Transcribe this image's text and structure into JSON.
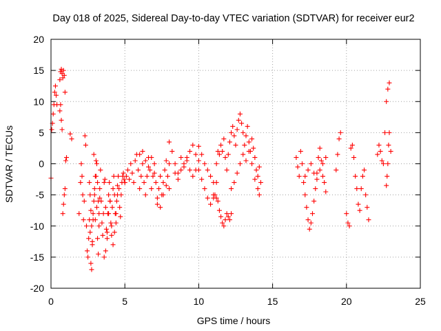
{
  "chart_data": {
    "type": "scatter",
    "title": "Day 018 of 2025, Sidereal Day-to-day VTEC variation (SDTVAR) for receiver eur2",
    "xlabel": "GPS time / hours",
    "ylabel": "SDTVAR / TECUs",
    "xlim": [
      0,
      25
    ],
    "ylim": [
      -20,
      20
    ],
    "xticks": [
      0,
      5,
      10,
      15,
      20,
      25
    ],
    "yticks": [
      -20,
      -15,
      -10,
      -5,
      0,
      5,
      10,
      15,
      20
    ],
    "xtick_labels": [
      "0",
      "5",
      "10",
      "15",
      "20",
      "25"
    ],
    "ytick_labels": [
      "-20",
      "-15",
      "-10",
      "-5",
      "0",
      "5",
      "10",
      "15",
      "20"
    ],
    "grid": true,
    "marker": "+",
    "color": "#ff0000",
    "series": [
      {
        "name": "eur2",
        "segments": [
          {
            "x": [
              0.0,
              0.05,
              0.1,
              0.15,
              0.2,
              0.25,
              0.3,
              0.35,
              0.4
            ],
            "y": [
              -2.3,
              5.5,
              6.5,
              8.0,
              9.5,
              11.5,
              12.5,
              11.0,
              9.5
            ]
          },
          {
            "x": [
              0.6,
              0.65,
              0.7,
              0.75,
              0.8,
              0.85,
              0.9,
              0.95
            ],
            "y": [
              13.5,
              14.8,
              15.2,
              14.5,
              13.8,
              15.0,
              14.2,
              11.5
            ]
          },
          {
            "x": [
              0.6,
              0.65,
              0.7,
              0.75,
              0.8,
              0.85,
              0.9,
              0.95,
              1.0,
              1.05
            ],
            "y": [
              8.5,
              9.5,
              7.0,
              5.5,
              -8.0,
              -6.5,
              -5.0,
              -4.0,
              0.5,
              1.0
            ]
          },
          {
            "x": [
              1.3,
              1.4
            ],
            "y": [
              4.8,
              4.0
            ]
          },
          {
            "x": [
              1.9,
              2.0,
              2.05,
              2.1,
              2.15,
              2.2,
              2.25,
              2.3,
              2.35,
              2.4,
              2.45,
              2.5,
              2.55,
              2.6,
              2.65,
              2.7,
              2.75,
              2.8,
              2.85,
              2.9,
              2.95,
              3.0,
              3.05,
              3.1,
              3.15,
              3.2,
              3.25,
              3.3,
              3.35,
              3.4,
              3.45,
              3.5,
              3.55,
              3.6,
              3.65,
              3.7,
              3.75,
              3.8,
              3.85,
              3.9,
              3.95,
              4.0,
              4.05,
              4.1,
              4.15,
              4.2,
              4.25,
              4.3,
              4.35,
              4.4,
              4.45,
              4.5,
              4.55,
              4.6,
              4.65,
              4.7,
              4.75,
              4.8,
              4.85,
              4.9,
              4.95,
              5.0
            ],
            "y": [
              -8.0,
              -3.0,
              0.0,
              -2.0,
              -5.0,
              -9.0,
              -6.0,
              4.5,
              3.0,
              -10.0,
              -14.0,
              -15.0,
              -12.0,
              -9.0,
              -11.0,
              -16.0,
              -17.0,
              -13.0,
              -8.0,
              1.5,
              -5.0,
              -9.0,
              -2.0,
              -7.0,
              -12.0,
              -14.5,
              -10.0,
              -4.0,
              -1.0,
              -6.0,
              -9.5,
              -11.5,
              -8.0,
              -3.0,
              -2.5,
              -7.0,
              -10.5,
              -12.0,
              -8.0,
              -5.0,
              -3.0,
              -6.0,
              -9.5,
              -11.5,
              -7.0,
              -4.0,
              -2.0,
              -5.0,
              -8.0,
              -9.5,
              -6.0,
              -3.5,
              -2.0,
              -4.0,
              -7.0,
              -8.5,
              -5.0,
              -3.0,
              -2.0,
              -1.5,
              -2.5,
              -3.0
            ]
          },
          {
            "x": [
              2.6,
              2.65,
              2.7,
              2.75,
              2.8,
              2.85,
              2.9,
              2.95,
              3.0,
              3.05,
              3.1,
              3.15,
              3.2,
              3.25,
              3.3
            ],
            "y": [
              -3.0,
              -5.0,
              -7.5,
              -10.0,
              -12.5,
              -9.0,
              -6.0,
              -4.0,
              -2.0,
              0.5,
              0.0,
              -3.0,
              -6.0,
              -8.0,
              -5.5
            ]
          },
          {
            "x": [
              3.6,
              3.7,
              3.8,
              3.9,
              4.0,
              4.1,
              4.2,
              4.3,
              4.4,
              4.5
            ],
            "y": [
              -15.0,
              -14.0,
              -11.0,
              -8.0,
              -6.0,
              -10.0,
              -13.0,
              -11.0,
              -8.0,
              -5.0
            ]
          },
          {
            "x": [
              5.0,
              5.1,
              5.2,
              5.3,
              5.4,
              5.5,
              5.6,
              5.7,
              5.8,
              5.9,
              6.0,
              6.1,
              6.2,
              6.3,
              6.4,
              6.5,
              6.6,
              6.7,
              6.8,
              6.9,
              7.0,
              7.1,
              7.2,
              7.3,
              7.4,
              7.5,
              7.6,
              7.7,
              7.8,
              7.9,
              8.0
            ],
            "y": [
              -3.0,
              -2.0,
              -1.0,
              -2.5,
              0.0,
              -1.5,
              -3.0,
              0.5,
              1.5,
              -1.0,
              -4.0,
              -2.0,
              0.0,
              -3.0,
              -5.0,
              -2.0,
              1.0,
              -1.0,
              -4.0,
              -2.0,
              0.0,
              -3.0,
              -6.5,
              -4.0,
              -2.0,
              -5.0,
              -3.0,
              -1.0,
              0.5,
              -2.0,
              0.0
            ]
          },
          {
            "x": [
              6.0,
              6.2,
              6.4,
              6.6,
              6.8,
              7.0,
              7.2,
              7.4,
              7.6,
              7.8,
              8.0
            ],
            "y": [
              1.5,
              2.0,
              0.5,
              -0.5,
              1.0,
              -1.5,
              -5.5,
              -7.0,
              -5.0,
              -3.5,
              -4.0
            ]
          },
          {
            "x": [
              8.0,
              8.2,
              8.4,
              8.6,
              8.8,
              9.0,
              9.2,
              9.4,
              9.6,
              9.8,
              10.0,
              10.2,
              10.4,
              10.6,
              10.8,
              11.0
            ],
            "y": [
              3.5,
              2.0,
              0.0,
              -1.5,
              1.0,
              -0.5,
              0.5,
              2.0,
              3.0,
              1.5,
              2.8,
              1.5,
              0.0,
              -1.0,
              -2.0,
              -3.0
            ]
          },
          {
            "x": [
              8.4,
              8.6,
              8.8,
              9.0,
              9.2,
              9.4,
              9.6,
              9.8,
              10.0
            ],
            "y": [
              -1.5,
              -2.5,
              -1.0,
              0.0,
              1.0,
              -1.0,
              -2.0,
              -1.0,
              0.5
            ]
          },
          {
            "x": [
              10.0,
              10.2,
              10.4,
              10.6,
              10.8,
              11.0,
              11.2
            ],
            "y": [
              -1.0,
              -2.5,
              -4.0,
              -5.5,
              -6.5,
              -5.0,
              -3.0
            ]
          },
          {
            "x": [
              11.0,
              11.1,
              11.2,
              11.3,
              11.4,
              11.5,
              11.6,
              11.7,
              11.8,
              11.9,
              12.0,
              12.1,
              12.2
            ],
            "y": [
              -5.5,
              -5.0,
              -5.5,
              -6.0,
              -7.5,
              -8.5,
              -9.5,
              -10.0,
              -9.0,
              -8.0,
              -8.5,
              -9.0,
              -8.0
            ]
          },
          {
            "x": [
              11.2,
              11.3,
              11.4,
              11.5,
              11.6,
              11.7,
              11.8,
              11.9,
              12.0,
              12.1,
              12.2,
              12.3,
              12.4,
              12.5,
              12.6,
              12.7,
              12.8,
              12.9,
              13.0,
              13.1,
              13.2,
              13.3,
              13.4,
              13.5,
              13.6,
              13.7,
              13.8,
              13.9,
              14.0,
              14.1,
              14.2
            ],
            "y": [
              0.0,
              2.0,
              1.5,
              3.0,
              2.0,
              4.0,
              1.0,
              -1.0,
              1.5,
              3.5,
              5.0,
              6.0,
              4.5,
              3.0,
              5.5,
              7.0,
              8.0,
              6.5,
              5.0,
              3.0,
              4.5,
              6.0,
              3.5,
              2.0,
              4.0,
              2.5,
              1.0,
              -1.0,
              -2.0,
              -0.5,
              -3.0
            ]
          },
          {
            "x": [
              12.2,
              12.4,
              12.6,
              12.8,
              13.0,
              13.2,
              13.4,
              13.6,
              13.8,
              14.0,
              14.1
            ],
            "y": [
              -4.0,
              -3.0,
              -1.5,
              0.0,
              1.5,
              0.5,
              2.0,
              0.0,
              -2.5,
              -4.0,
              -5.0
            ]
          },
          {
            "x": [
              16.6,
              16.7,
              16.8,
              16.9,
              17.0,
              17.1,
              17.2,
              17.3,
              17.4,
              17.5,
              17.6,
              17.7,
              17.8,
              17.9,
              18.0,
              18.1,
              18.2,
              18.3,
              18.4,
              18.5,
              18.6
            ],
            "y": [
              1.0,
              -0.5,
              -2.0,
              2.0,
              0.0,
              -3.0,
              -5.0,
              -7.0,
              -9.0,
              -10.5,
              -9.5,
              -8.0,
              -6.0,
              -4.0,
              -1.5,
              1.0,
              2.5,
              0.5,
              -2.0,
              -3.0,
              -4.5
            ]
          },
          {
            "x": [
              17.2,
              17.4,
              17.6,
              17.8,
              18.0,
              18.2,
              18.4,
              18.6
            ],
            "y": [
              -2.0,
              -1.0,
              0.0,
              -1.5,
              -2.5,
              -1.0,
              0.0,
              1.0
            ]
          },
          {
            "x": [
              19.3,
              19.4,
              19.5,
              19.6
            ],
            "y": [
              -1.0,
              1.5,
              4.0,
              5.0
            ]
          },
          {
            "x": [
              20.0,
              20.1,
              20.2,
              20.3,
              20.4,
              20.5,
              20.6,
              20.7,
              20.8,
              20.9,
              21.0,
              21.1,
              21.2,
              21.3,
              21.4,
              21.5
            ],
            "y": [
              -8.0,
              -9.5,
              -10.0,
              2.5,
              3.0,
              1.0,
              -2.0,
              -4.0,
              -6.5,
              -7.5,
              -4.0,
              -2.0,
              -1.0,
              -5.0,
              -7.0,
              -9.0
            ]
          },
          {
            "x": [
              22.1,
              22.2,
              22.3,
              22.4,
              22.5,
              22.6,
              22.7,
              22.8,
              22.9,
              23.0
            ],
            "y": [
              1.5,
              3.0,
              2.0,
              0.5,
              0.0,
              5.0,
              10.0,
              12.0,
              13.0,
              2.0
            ]
          },
          {
            "x": [
              22.7,
              22.75,
              22.8,
              22.85,
              22.9
            ],
            "y": [
              -3.5,
              -2.0,
              0.0,
              3.0,
              5.0
            ]
          }
        ]
      }
    ]
  }
}
